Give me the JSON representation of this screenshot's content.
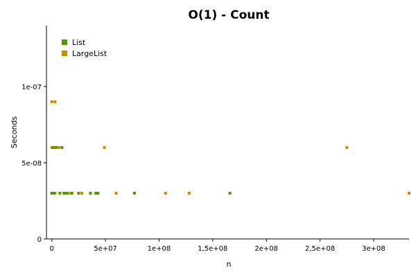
{
  "chart_data": {
    "type": "scatter",
    "title": "O(1) - Count",
    "xlabel": "n",
    "ylabel": "Seconds",
    "xlim": [
      -5000000,
      333000000
    ],
    "ylim": [
      0,
      1.4e-07
    ],
    "x_ticks": [
      {
        "value": 0,
        "label": "0"
      },
      {
        "value": 50000000,
        "label": "5e+07"
      },
      {
        "value": 100000000,
        "label": "1e+08"
      },
      {
        "value": 150000000,
        "label": "1,5e+08"
      },
      {
        "value": 200000000,
        "label": "2e+08"
      },
      {
        "value": 250000000,
        "label": "2,5e+08"
      },
      {
        "value": 300000000,
        "label": "3e+08"
      }
    ],
    "y_ticks": [
      {
        "value": 0,
        "label": "0"
      },
      {
        "value": 5e-08,
        "label": "5e-08"
      },
      {
        "value": 1e-07,
        "label": "1e-07"
      }
    ],
    "grid": false,
    "legend_position": "top-left",
    "series": [
      {
        "name": "List",
        "color": "#4e9a06",
        "points": [
          {
            "x": 0,
            "y": 3e-08
          },
          {
            "x": 500000,
            "y": 3e-08
          },
          {
            "x": 1000000,
            "y": 6e-08
          },
          {
            "x": 2000000,
            "y": 3e-08
          },
          {
            "x": 4000000,
            "y": 6e-08
          },
          {
            "x": 7500000,
            "y": 3e-08
          },
          {
            "x": 9500000,
            "y": 6e-08
          },
          {
            "x": 12000000,
            "y": 3e-08
          },
          {
            "x": 14000000,
            "y": 3e-08
          },
          {
            "x": 18000000,
            "y": 3e-08
          },
          {
            "x": 25000000,
            "y": 3e-08
          },
          {
            "x": 36000000,
            "y": 3e-08
          },
          {
            "x": 41000000,
            "y": 3e-08
          },
          {
            "x": 43000000,
            "y": 3e-08
          },
          {
            "x": 77000000,
            "y": 3e-08
          },
          {
            "x": 166000000,
            "y": 3e-08
          }
        ]
      },
      {
        "name": "LargeList",
        "color": "#cc8a00",
        "points": [
          {
            "x": 0,
            "y": 9e-08
          },
          {
            "x": 3000000,
            "y": 9e-08
          },
          {
            "x": 0,
            "y": 6e-08
          },
          {
            "x": 1500000,
            "y": 6e-08
          },
          {
            "x": 3000000,
            "y": 6e-08
          },
          {
            "x": 6500000,
            "y": 6e-08
          },
          {
            "x": 0,
            "y": 3e-08
          },
          {
            "x": 1500000,
            "y": 3e-08
          },
          {
            "x": 3000000,
            "y": 3e-08
          },
          {
            "x": 11000000,
            "y": 3e-08
          },
          {
            "x": 13000000,
            "y": 3e-08
          },
          {
            "x": 15000000,
            "y": 3e-08
          },
          {
            "x": 19000000,
            "y": 3e-08
          },
          {
            "x": 28000000,
            "y": 3e-08
          },
          {
            "x": 49000000,
            "y": 6e-08
          },
          {
            "x": 60000000,
            "y": 3e-08
          },
          {
            "x": 106000000,
            "y": 3e-08
          },
          {
            "x": 128000000,
            "y": 3e-08
          },
          {
            "x": 275000000,
            "y": 6e-08
          },
          {
            "x": 333000000,
            "y": 3e-08
          }
        ]
      }
    ]
  }
}
